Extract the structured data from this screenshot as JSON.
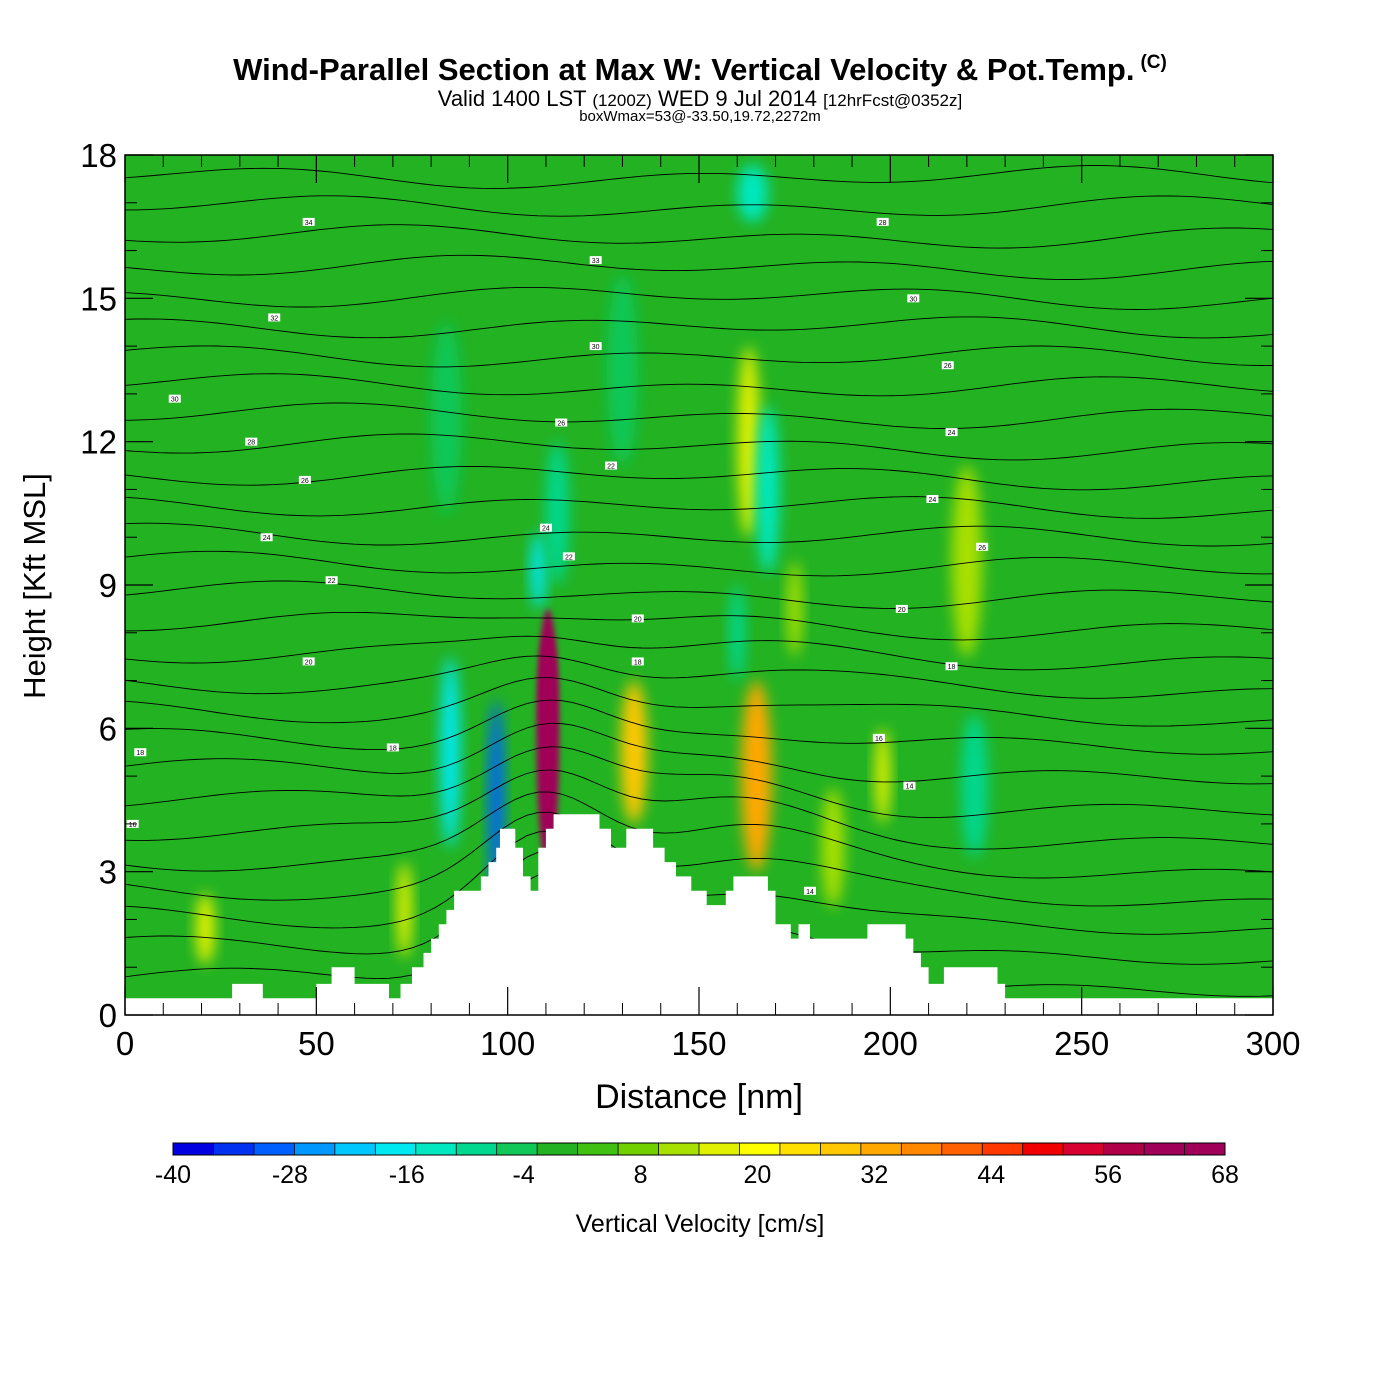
{
  "title": {
    "main": "Wind-Parallel Section at Max W: Vertical Velocity & Pot.Temp.",
    "copyright": "(C)",
    "valid_prefix": "Valid 1400 LST",
    "valid_utc": "(1200Z)",
    "valid_date": "WED 9 Jul 2014",
    "forecast": "[12hrFcst@0352z]",
    "boxwmax": "boxWmax=53@-33.50,19.72,2272m"
  },
  "colors": {
    "background_field": "#22b222",
    "terrain": "#ffffff",
    "contour": "#000000",
    "frame": "#000000"
  },
  "chart_data": {
    "type": "heatmap",
    "title": "Wind-Parallel Section at Max W: Vertical Velocity & Pot.Temp.",
    "xlabel": "Distance [nm]",
    "ylabel": "Height [Kft MSL]",
    "xlim": [
      0,
      300
    ],
    "ylim": [
      0,
      18
    ],
    "xticks": [
      0,
      50,
      100,
      150,
      200,
      250,
      300
    ],
    "yticks": [
      0,
      3,
      6,
      9,
      12,
      15,
      18
    ],
    "colorbar": {
      "label": "Vertical Velocity [cm/s]",
      "min": -40,
      "max": 68,
      "step": 4,
      "tick_labels": [
        -40,
        -28,
        -16,
        -4,
        8,
        20,
        32,
        44,
        56,
        68
      ],
      "colors": [
        "#0000e0",
        "#0030f0",
        "#0060ff",
        "#0098ff",
        "#00c8ff",
        "#00e8f0",
        "#00e8c0",
        "#00d890",
        "#10c858",
        "#22b222",
        "#40c010",
        "#70d000",
        "#a8e000",
        "#e0f000",
        "#ffff00",
        "#ffe000",
        "#ffc800",
        "#ffa800",
        "#ff8800",
        "#ff6000",
        "#ff3800",
        "#f00000",
        "#d80030",
        "#b00048",
        "#a00058"
      ]
    },
    "terrain_kft": [
      [
        0,
        0.35
      ],
      [
        28,
        0.35
      ],
      [
        28,
        0.65
      ],
      [
        36,
        0.65
      ],
      [
        36,
        0.35
      ],
      [
        50,
        0.35
      ],
      [
        50,
        0.65
      ],
      [
        54,
        0.65
      ],
      [
        54,
        1
      ],
      [
        60,
        1
      ],
      [
        60,
        0.65
      ],
      [
        69,
        0.65
      ],
      [
        69,
        0.35
      ],
      [
        72,
        0.35
      ],
      [
        72,
        0.65
      ],
      [
        75,
        0.65
      ],
      [
        75,
        1
      ],
      [
        78,
        1
      ],
      [
        78,
        1.3
      ],
      [
        80,
        1.3
      ],
      [
        80,
        1.6
      ],
      [
        82,
        1.6
      ],
      [
        82,
        1.9
      ],
      [
        84,
        1.9
      ],
      [
        84,
        2.2
      ],
      [
        86,
        2.2
      ],
      [
        86,
        2.6
      ],
      [
        93,
        2.6
      ],
      [
        93,
        2.9
      ],
      [
        95,
        2.9
      ],
      [
        95,
        3.2
      ],
      [
        97,
        3.2
      ],
      [
        97,
        3.5
      ],
      [
        98,
        3.5
      ],
      [
        98,
        3.9
      ],
      [
        102,
        3.9
      ],
      [
        102,
        3.5
      ],
      [
        104,
        3.5
      ],
      [
        104,
        2.9
      ],
      [
        106,
        2.9
      ],
      [
        106,
        2.6
      ],
      [
        108,
        2.6
      ],
      [
        108,
        3.5
      ],
      [
        110,
        3.5
      ],
      [
        110,
        3.9
      ],
      [
        112,
        3.9
      ],
      [
        112,
        4.2
      ],
      [
        124,
        4.2
      ],
      [
        124,
        3.9
      ],
      [
        127,
        3.9
      ],
      [
        127,
        3.5
      ],
      [
        131,
        3.5
      ],
      [
        131,
        3.9
      ],
      [
        138,
        3.9
      ],
      [
        138,
        3.5
      ],
      [
        141,
        3.5
      ],
      [
        141,
        3.2
      ],
      [
        144,
        3.2
      ],
      [
        144,
        2.9
      ],
      [
        148,
        2.9
      ],
      [
        148,
        2.6
      ],
      [
        152,
        2.6
      ],
      [
        152,
        2.3
      ],
      [
        157,
        2.3
      ],
      [
        157,
        2.6
      ],
      [
        159,
        2.6
      ],
      [
        159,
        2.9
      ],
      [
        168,
        2.9
      ],
      [
        168,
        2.6
      ],
      [
        170,
        2.6
      ],
      [
        170,
        1.9
      ],
      [
        174,
        1.9
      ],
      [
        174,
        1.6
      ],
      [
        176,
        1.6
      ],
      [
        176,
        1.9
      ],
      [
        179,
        1.9
      ],
      [
        179,
        1.6
      ],
      [
        194,
        1.6
      ],
      [
        194,
        1.9
      ],
      [
        204,
        1.9
      ],
      [
        204,
        1.6
      ],
      [
        206,
        1.6
      ],
      [
        206,
        1.3
      ],
      [
        208,
        1.3
      ],
      [
        208,
        1
      ],
      [
        210,
        1
      ],
      [
        210,
        0.65
      ],
      [
        214,
        0.65
      ],
      [
        214,
        1
      ],
      [
        228,
        1
      ],
      [
        228,
        0.65
      ],
      [
        230,
        0.65
      ],
      [
        230,
        0.35
      ],
      [
        300,
        0.35
      ]
    ],
    "vertical_velocity_features_cm_s": [
      {
        "x": 110.5,
        "y": 5.8,
        "w": 3.0,
        "h": 5.4,
        "value": 60
      },
      {
        "x": 110.5,
        "y": 6.8,
        "w": 2.2,
        "h": 2.4,
        "value": 66
      },
      {
        "x": 97,
        "y": 4.5,
        "w": 2.0,
        "h": 4.2,
        "value": -30
      },
      {
        "x": 85,
        "y": 5.5,
        "w": 2.6,
        "h": 4.0,
        "value": -18
      },
      {
        "x": 133,
        "y": 5.5,
        "w": 3.5,
        "h": 3.0,
        "value": 26
      },
      {
        "x": 165,
        "y": 5.0,
        "w": 4.0,
        "h": 4.0,
        "value": 28
      },
      {
        "x": 108,
        "y": 9.3,
        "w": 2.0,
        "h": 1.6,
        "value": -18
      },
      {
        "x": 163,
        "y": 12.0,
        "w": 3.0,
        "h": 4.0,
        "value": 12
      },
      {
        "x": 168,
        "y": 11.0,
        "w": 3.0,
        "h": 3.5,
        "value": -14
      },
      {
        "x": 220,
        "y": 9.5,
        "w": 4.0,
        "h": 4.0,
        "value": 10
      },
      {
        "x": 222,
        "y": 4.8,
        "w": 3.5,
        "h": 3.0,
        "value": -12
      },
      {
        "x": 21,
        "y": 1.8,
        "w": 2.5,
        "h": 1.5,
        "value": 14
      },
      {
        "x": 73,
        "y": 2.2,
        "w": 2.0,
        "h": 2.0,
        "value": 12
      },
      {
        "x": 185,
        "y": 3.5,
        "w": 3.0,
        "h": 2.5,
        "value": 10
      },
      {
        "x": 198,
        "y": 5.0,
        "w": 2.0,
        "h": 2.0,
        "value": 12
      },
      {
        "x": 130,
        "y": 13.5,
        "w": 4.0,
        "h": 4.0,
        "value": -8
      },
      {
        "x": 113,
        "y": 10.5,
        "w": 3.0,
        "h": 3.0,
        "value": -10
      },
      {
        "x": 164,
        "y": 17.2,
        "w": 4.0,
        "h": 1.2,
        "value": -14
      },
      {
        "x": 84,
        "y": 12.5,
        "w": 4.0,
        "h": 4.0,
        "value": -6
      },
      {
        "x": 160,
        "y": 8.0,
        "w": 2.0,
        "h": 2.0,
        "value": -12
      },
      {
        "x": 175,
        "y": 8.5,
        "w": 2.0,
        "h": 2.0,
        "value": 10
      },
      {
        "x": 140,
        "y": 2.0,
        "w": 1.0,
        "h": 1.0,
        "value": 0
      }
    ],
    "pot_temp_contour_labels": [
      {
        "text": "34",
        "x": 48,
        "y": 16.6
      },
      {
        "text": "32",
        "x": 39,
        "y": 14.6
      },
      {
        "text": "30",
        "x": 13,
        "y": 12.9
      },
      {
        "text": "28",
        "x": 33,
        "y": 12.0
      },
      {
        "text": "26",
        "x": 47,
        "y": 11.2
      },
      {
        "text": "24",
        "x": 37,
        "y": 10.0
      },
      {
        "text": "22",
        "x": 54,
        "y": 9.1
      },
      {
        "text": "20",
        "x": 48,
        "y": 7.4
      },
      {
        "text": "18",
        "x": 4,
        "y": 5.5
      },
      {
        "text": "16",
        "x": 2,
        "y": 4.0
      },
      {
        "text": "18",
        "x": 70,
        "y": 5.6
      },
      {
        "text": "33",
        "x": 123,
        "y": 15.8
      },
      {
        "text": "30",
        "x": 123,
        "y": 14.0
      },
      {
        "text": "26",
        "x": 114,
        "y": 12.4
      },
      {
        "text": "22",
        "x": 127,
        "y": 11.5
      },
      {
        "text": "24",
        "x": 110,
        "y": 10.2
      },
      {
        "text": "22",
        "x": 116,
        "y": 9.6
      },
      {
        "text": "20",
        "x": 134,
        "y": 8.3
      },
      {
        "text": "18",
        "x": 134,
        "y": 7.4
      },
      {
        "text": "28",
        "x": 198,
        "y": 16.6
      },
      {
        "text": "30",
        "x": 206,
        "y": 15.0
      },
      {
        "text": "26",
        "x": 215,
        "y": 13.6
      },
      {
        "text": "24",
        "x": 216,
        "y": 12.2
      },
      {
        "text": "24",
        "x": 211,
        "y": 10.8
      },
      {
        "text": "26",
        "x": 224,
        "y": 9.8
      },
      {
        "text": "20",
        "x": 203,
        "y": 8.5
      },
      {
        "text": "18",
        "x": 216,
        "y": 7.3
      },
      {
        "text": "16",
        "x": 197,
        "y": 5.8
      },
      {
        "text": "14",
        "x": 205,
        "y": 4.8
      },
      {
        "text": "14",
        "x": 179,
        "y": 2.6
      }
    ]
  }
}
